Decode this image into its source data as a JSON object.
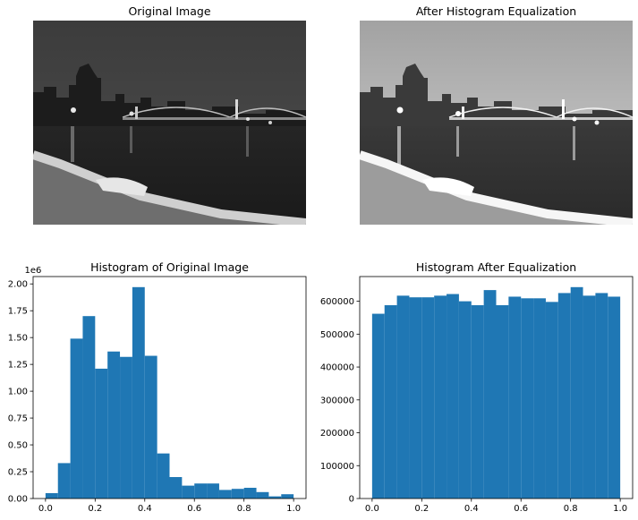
{
  "figure": {
    "top_left_title": "Original Image",
    "top_right_title": "After Histogram Equalization"
  },
  "chart_data": [
    {
      "type": "bar",
      "title": "Histogram of Original Image",
      "xlabel": "",
      "ylabel": "",
      "offset_text": "1e6",
      "bin_edges": [
        0.0,
        0.05,
        0.1,
        0.15,
        0.2,
        0.25,
        0.3,
        0.35,
        0.4,
        0.45,
        0.5,
        0.55,
        0.6,
        0.65,
        0.7,
        0.75,
        0.8,
        0.85,
        0.9,
        0.95,
        1.0
      ],
      "values": [
        50000,
        330000,
        1490000,
        1700000,
        1210000,
        1370000,
        1320000,
        1970000,
        1330000,
        420000,
        200000,
        120000,
        140000,
        140000,
        80000,
        90000,
        100000,
        60000,
        20000,
        40000
      ],
      "xlim": [
        -0.05,
        1.05
      ],
      "ylim": [
        0,
        2068500
      ],
      "xticks": [
        0.0,
        0.2,
        0.4,
        0.6,
        0.8,
        1.0
      ],
      "xtick_labels": [
        "0.0",
        "0.2",
        "0.4",
        "0.6",
        "0.8",
        "1.0"
      ],
      "yticks": [
        0,
        250000,
        500000,
        750000,
        1000000,
        1250000,
        1500000,
        1750000,
        2000000
      ],
      "ytick_labels": [
        "0.00",
        "0.25",
        "0.50",
        "0.75",
        "1.00",
        "1.25",
        "1.50",
        "1.75",
        "2.00"
      ],
      "color": "#1f77b4",
      "grid": false
    },
    {
      "type": "bar",
      "title": "Histogram After Equalization",
      "xlabel": "",
      "ylabel": "",
      "bin_edges": [
        0.0,
        0.05,
        0.1,
        0.15,
        0.2,
        0.25,
        0.3,
        0.35,
        0.4,
        0.45,
        0.5,
        0.55,
        0.6,
        0.65,
        0.7,
        0.75,
        0.8,
        0.85,
        0.9,
        0.95,
        1.0
      ],
      "values": [
        562000,
        588000,
        617000,
        612000,
        612000,
        617000,
        622000,
        600000,
        588000,
        634000,
        588000,
        614000,
        609000,
        609000,
        598000,
        625000,
        643000,
        617000,
        625000,
        614000
      ],
      "xlim": [
        -0.05,
        1.05
      ],
      "ylim": [
        0,
        675150
      ],
      "xticks": [
        0.0,
        0.2,
        0.4,
        0.6,
        0.8,
        1.0
      ],
      "xtick_labels": [
        "0.0",
        "0.2",
        "0.4",
        "0.6",
        "0.8",
        "1.0"
      ],
      "yticks": [
        0,
        100000,
        200000,
        300000,
        400000,
        500000,
        600000
      ],
      "ytick_labels": [
        "0",
        "100000",
        "200000",
        "300000",
        "400000",
        "500000",
        "600000"
      ],
      "color": "#1f77b4",
      "grid": false
    }
  ]
}
